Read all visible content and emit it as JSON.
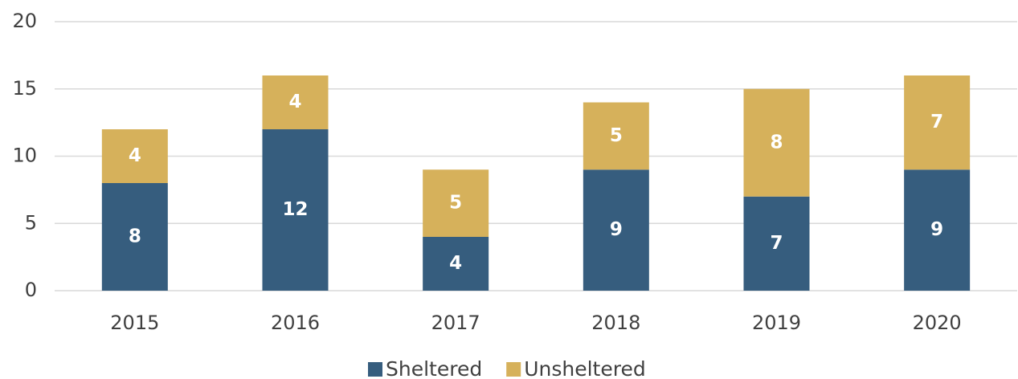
{
  "chart_data": {
    "type": "stacked_bar",
    "categories": [
      "2015",
      "2016",
      "2017",
      "2018",
      "2019",
      "2020"
    ],
    "series": [
      {
        "name": "Sheltered",
        "color": "#365d7e",
        "values": [
          8,
          12,
          4,
          9,
          7,
          9
        ]
      },
      {
        "name": "Unsheltered",
        "color": "#d6b15b",
        "values": [
          4,
          4,
          5,
          5,
          8,
          7
        ]
      }
    ],
    "ylim": [
      0,
      20
    ],
    "yticks": [
      0,
      5,
      10,
      15,
      20
    ],
    "grid": true,
    "legend": "bottom"
  }
}
